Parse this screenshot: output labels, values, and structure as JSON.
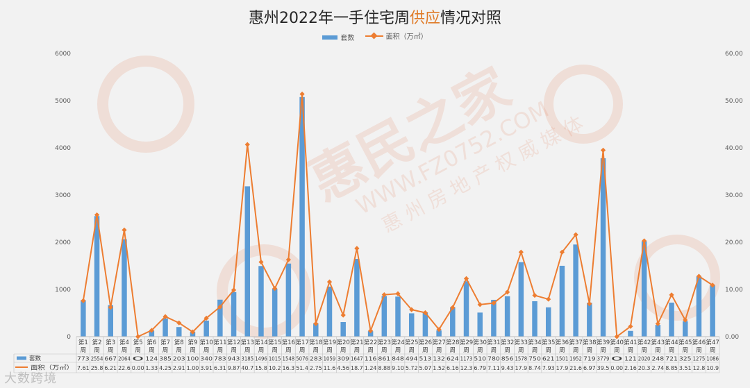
{
  "title": {
    "pre": "惠州2022年一手住宅周",
    "hl": "供应",
    "post": "情况对照"
  },
  "legend": {
    "bar": "套数",
    "line": "面积（万㎡）"
  },
  "colors": {
    "bar": "#5b9bd5",
    "line": "#ed7d31",
    "highlight": "#e07b28",
    "axis": "#595959"
  },
  "table": {
    "row1_label": "套数",
    "row2_label": "面积（万㎡）"
  },
  "watermark": {
    "text1": "惠民之家",
    "text2": "WWW.FZ0752.COM",
    "text3": "惠 州 房 地 产 权 威 媒 体"
  },
  "brand": "大数跨境",
  "chart_data": {
    "type": "bar",
    "title": "惠州2022年一手住宅周供应情况对照",
    "categories": [
      "第1周",
      "第2周",
      "第3周",
      "第4周",
      "第5周",
      "第6周",
      "第7周",
      "第8周",
      "第9周",
      "第10周",
      "第11周",
      "第12周",
      "第13周",
      "第14周",
      "第15周",
      "第16周",
      "第17周",
      "第18周",
      "第19周",
      "第20周",
      "第21周",
      "第22周",
      "第23周",
      "第24周",
      "第25周",
      "第26周",
      "第27周",
      "第28周",
      "第29周",
      "第30周",
      "第31周",
      "第32周",
      "第33周",
      "第34周",
      "第35周",
      "第36周",
      "第37周",
      "第38周",
      "第39周",
      "第40周",
      "第41周",
      "第42周",
      "第43周",
      "第44周",
      "第45周",
      "第46周",
      "第47周"
    ],
    "series": [
      {
        "name": "套数",
        "type": "bar",
        "axis": "left",
        "values": [
          773,
          2554,
          667,
          2064,
          0,
          124,
          385,
          203,
          100,
          340,
          783,
          943,
          3185,
          1496,
          1015,
          1548,
          5076,
          283,
          1059,
          309,
          1647,
          116,
          861,
          848,
          494,
          513,
          132,
          624,
          1173,
          510,
          780,
          856,
          1578,
          750,
          621,
          1501,
          1952,
          719,
          3779,
          0,
          121,
          2020,
          248,
          721,
          325,
          1275,
          1086
        ],
        "labels": [
          "773",
          "2554",
          "667",
          "2064",
          "0",
          "124",
          "385",
          "203",
          "100",
          "340",
          "783",
          "943",
          "3185",
          "1496",
          "1015",
          "1548",
          "5076",
          "283",
          "1059",
          "309",
          "1647",
          "116",
          "861",
          "848",
          "494",
          "513",
          "132",
          "624",
          "1173",
          "510",
          "780",
          "856",
          "1578",
          "750",
          "621",
          "1501",
          "1952",
          "719",
          "3779",
          "0",
          "121",
          "2020",
          "248",
          "721",
          "325",
          "1275",
          "1086"
        ]
      },
      {
        "name": "面积（万㎡）",
        "type": "line",
        "axis": "right",
        "values": [
          7.61,
          25.8,
          6.21,
          22.6,
          0.0,
          1.33,
          4.25,
          2.91,
          1.0,
          3.91,
          6.31,
          9.87,
          40.7,
          15.8,
          10.2,
          16.3,
          51.4,
          2.75,
          11.6,
          4.56,
          18.7,
          1.24,
          8.88,
          9.1,
          5.72,
          5.07,
          1.52,
          6.16,
          12.3,
          6.79,
          7.11,
          9.43,
          17.9,
          8.74,
          7.93,
          17.9,
          21.6,
          6.97,
          39.5,
          0.0,
          2.16,
          20.3,
          2.74,
          8.85,
          3.51,
          12.8,
          10.9
        ],
        "labels": [
          "7.61",
          "25.8",
          "6.21",
          "22.6",
          "0.00",
          "1.33",
          "4.25",
          "2.91",
          "1.00",
          "3.91",
          "6.31",
          "9.87",
          "40.7",
          "15.8",
          "10.2",
          "16.3",
          "51.4",
          "2.75",
          "11.6",
          "4.56",
          "18.7",
          "1.24",
          "8.88",
          "9.10",
          "5.72",
          "5.07",
          "1.52",
          "6.16",
          "12.3",
          "6.79",
          "7.11",
          "9.43",
          "17.9",
          "8.74",
          "7.93",
          "17.9",
          "21.6",
          "6.97",
          "39.5",
          "0.00",
          "2.16",
          "20.3",
          "2.74",
          "8.85",
          "3.51",
          "12.8",
          "10.9"
        ]
      }
    ],
    "y_left": {
      "ylim": [
        0,
        6000
      ],
      "ticks": [
        "0",
        "1000",
        "2000",
        "3000",
        "4000",
        "5000",
        "6000"
      ]
    },
    "y_right": {
      "ylim": [
        0,
        60
      ],
      "ticks": [
        "0.00",
        "10.00",
        "20.00",
        "30.00",
        "40.00",
        "50.00",
        "60.00"
      ]
    },
    "grid": false,
    "legend_position": "top-center"
  }
}
